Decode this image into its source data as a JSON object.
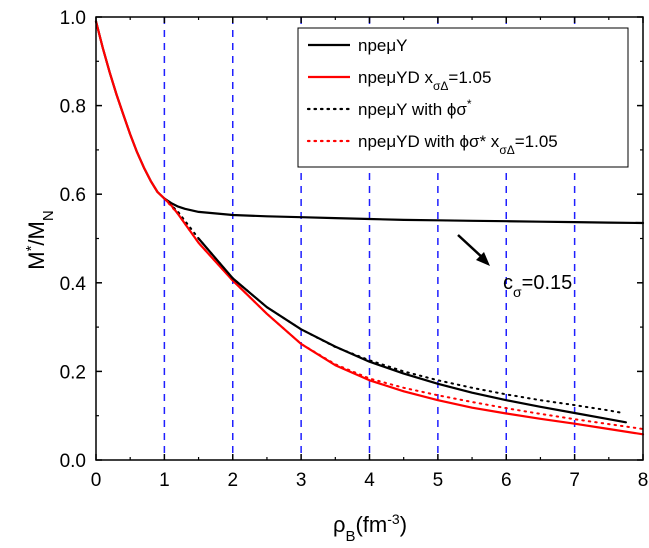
{
  "chart_data": {
    "type": "line",
    "xlabel": "ρB(fm-3)",
    "xlabel_main": "ρ",
    "xlabel_sub": "B",
    "xlabel_rest": "(fm",
    "xlabel_sup": "-3",
    "xlabel_close": ")",
    "ylabel": "M*/MN",
    "ylabel_main": "M",
    "ylabel_sup": "*",
    "ylabel_mid": "/M",
    "ylabel_sub": "N",
    "xlim": [
      0,
      8
    ],
    "ylim": [
      0,
      1.0
    ],
    "x_ticks": [
      "0",
      "1",
      "2",
      "3",
      "4",
      "5",
      "6",
      "7",
      "8"
    ],
    "y_ticks": [
      "0.0",
      "0.2",
      "0.4",
      "0.6",
      "0.8",
      "1.0"
    ],
    "vertical_reference_lines": [
      1,
      2,
      3,
      4,
      5,
      6,
      7
    ],
    "grid": false,
    "legend_position": "top-right",
    "annotation": {
      "text": "cσ=0.15",
      "main": "c",
      "sub": "σ",
      "rest": "=0.15"
    },
    "series": [
      {
        "name": "npeμY",
        "legend_parts": [
          "npeμY",
          "",
          ""
        ],
        "color": "#000000",
        "style": "solid",
        "x": [
          0,
          0.1,
          0.2,
          0.3,
          0.4,
          0.5,
          0.6,
          0.7,
          0.8,
          0.9,
          1.0,
          1.1,
          1.2,
          1.3,
          1.5,
          2,
          2.5,
          3,
          3.5,
          4,
          4.5,
          5,
          5.5,
          6,
          6.5,
          7,
          7.5,
          8
        ],
        "y": [
          0.99,
          0.93,
          0.875,
          0.825,
          0.78,
          0.735,
          0.695,
          0.66,
          0.63,
          0.605,
          0.59,
          0.58,
          0.572,
          0.567,
          0.56,
          0.553,
          0.55,
          0.548,
          0.546,
          0.544,
          0.542,
          0.541,
          0.54,
          0.539,
          0.538,
          0.537,
          0.536,
          0.535
        ]
      },
      {
        "name": "npeμYD xσΔ=1.05",
        "legend_parts": [
          "npeμYD x",
          "σΔ",
          "=1.05"
        ],
        "color": "#ff0000",
        "style": "solid",
        "x": [
          0,
          0.1,
          0.2,
          0.3,
          0.4,
          0.5,
          0.6,
          0.7,
          0.8,
          0.9,
          1.0,
          1.1,
          1.2,
          1.5,
          2,
          2.5,
          3,
          3.5,
          4,
          4.5,
          5,
          5.5,
          6,
          6.5,
          7,
          7.5,
          8
        ],
        "y": [
          0.99,
          0.93,
          0.875,
          0.825,
          0.78,
          0.735,
          0.695,
          0.66,
          0.63,
          0.605,
          0.59,
          0.575,
          0.555,
          0.49,
          0.405,
          0.33,
          0.262,
          0.214,
          0.18,
          0.155,
          0.135,
          0.118,
          0.105,
          0.093,
          0.082,
          0.07,
          0.058
        ]
      },
      {
        "name": "npeμY with ϕσ*",
        "legend_parts": [
          "npeμY with ϕσ",
          "",
          "*"
        ],
        "color": "#000000",
        "style": "dotted",
        "x": [
          1.0,
          1.2,
          1.5,
          2,
          2.5,
          3,
          3.5,
          4,
          4.5,
          5,
          5.5,
          6,
          6.5,
          7,
          7.5,
          7.7
        ],
        "y": [
          0.59,
          0.56,
          0.5,
          0.41,
          0.345,
          0.295,
          0.255,
          0.225,
          0.2,
          0.18,
          0.163,
          0.148,
          0.135,
          0.124,
          0.112,
          0.106
        ]
      },
      {
        "name": "npeμYD with ϕσ* xσΔ=1.05",
        "legend_parts": [
          "npeμYD with ϕσ* x",
          "σΔ",
          "=1.05"
        ],
        "color": "#ff0000",
        "style": "dotted",
        "x": [
          1.0,
          1.2,
          1.5,
          2,
          2.5,
          3,
          3.5,
          4,
          4.5,
          5,
          5.5,
          6,
          6.5,
          7,
          7.5,
          8
        ],
        "y": [
          0.59,
          0.555,
          0.49,
          0.405,
          0.33,
          0.262,
          0.216,
          0.184,
          0.163,
          0.146,
          0.131,
          0.117,
          0.104,
          0.092,
          0.081,
          0.07
        ]
      },
      {
        "name": "",
        "legend_parts": [
          "",
          "",
          ""
        ],
        "color": "#000000",
        "style": "solid",
        "x": [
          1.5,
          2,
          2.5,
          3,
          3.5,
          4,
          4.5,
          5,
          5.5,
          6,
          6.5,
          7,
          7.5,
          7.75
        ],
        "y": [
          0.5,
          0.41,
          0.345,
          0.295,
          0.256,
          0.222,
          0.195,
          0.172,
          0.152,
          0.135,
          0.12,
          0.106,
          0.092,
          0.085
        ]
      }
    ]
  }
}
